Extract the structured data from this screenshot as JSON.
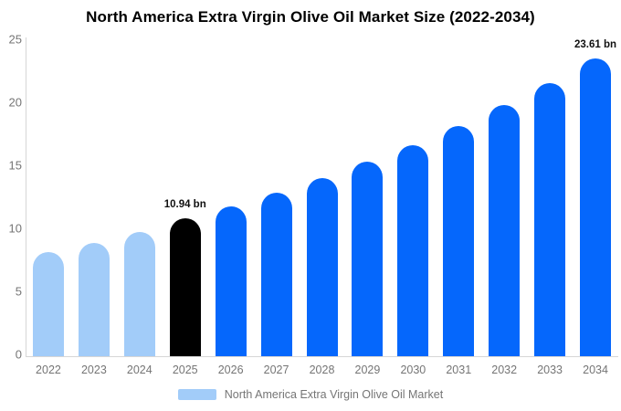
{
  "title": "North America Extra Virgin Olive Oil Market Size (2022-2034)",
  "colors": {
    "historical_bar": "#a2ccf9",
    "base_year_bar": "#000000",
    "forecast_bar": "#0567fc",
    "axis_line": "#d6d6d6",
    "axis_text": "#757575",
    "data_label_text": "#111111",
    "title_text": "#000000",
    "background": "#ffffff"
  },
  "chart_data": {
    "type": "bar",
    "title": "North America Extra Virgin Olive Oil Market Size (2022-2034)",
    "unit": "bn",
    "categories": [
      "2022",
      "2023",
      "2024",
      "2025",
      "2026",
      "2027",
      "2028",
      "2029",
      "2030",
      "2031",
      "2032",
      "2033",
      "2034"
    ],
    "values": [
      8.28,
      9.02,
      9.86,
      10.94,
      11.92,
      12.98,
      14.14,
      15.4,
      16.77,
      18.27,
      19.9,
      21.67,
      23.61
    ],
    "bar_colors": [
      "#a2ccf9",
      "#a2ccf9",
      "#a2ccf9",
      "#000000",
      "#0567fc",
      "#0567fc",
      "#0567fc",
      "#0567fc",
      "#0567fc",
      "#0567fc",
      "#0567fc",
      "#0567fc",
      "#0567fc"
    ],
    "data_labels": [
      {
        "index": 3,
        "text": "10.94 bn"
      },
      {
        "index": 12,
        "text": "23.61 bn"
      }
    ],
    "xlabel": "",
    "ylabel": "",
    "ylim": [
      0,
      25
    ],
    "yticks": [
      0,
      5,
      10,
      15,
      20,
      25
    ],
    "ytick_labels": [
      "0",
      "5",
      "10",
      "15",
      "20",
      "25"
    ],
    "grid": false,
    "legend_position": "bottom"
  },
  "legend": {
    "label": "North America Extra Virgin Olive Oil Market",
    "swatch_color": "#a2ccf9"
  }
}
